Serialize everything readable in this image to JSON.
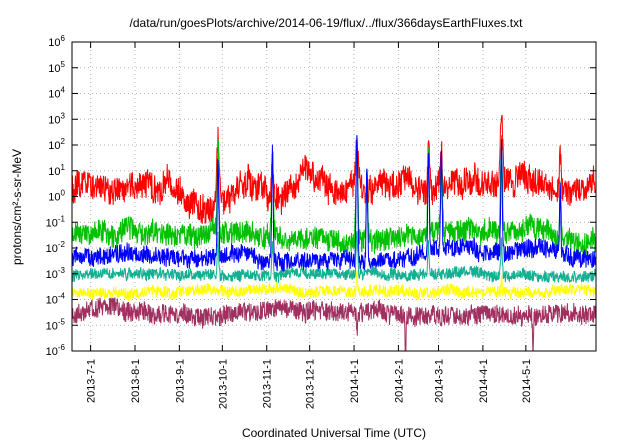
{
  "chart_data": {
    "type": "line",
    "title": "/data/run/goesPlots/archive/2014-06-19/flux/../flux/366daysEarthFluxes.txt",
    "xlabel": "Coordinated Universal Time (UTC)",
    "ylabel": "protons/cm²-s-sr-MeV",
    "grid": true,
    "legend": "none",
    "y_scale": "log10",
    "y_log_range": [
      -6,
      6
    ],
    "y_ticks_exponents": [
      6,
      5,
      4,
      3,
      2,
      1,
      0,
      -1,
      -2,
      -3,
      -4,
      -5,
      -6
    ],
    "x_range_days": 366,
    "x_ticks": [
      {
        "label": "2013-7-1",
        "day": 13
      },
      {
        "label": "2013-8-1",
        "day": 44
      },
      {
        "label": "2013-9-1",
        "day": 75
      },
      {
        "label": "2013-10-1",
        "day": 105
      },
      {
        "label": "2013-11-1",
        "day": 136
      },
      {
        "label": "2013-12-1",
        "day": 166
      },
      {
        "label": "2014-1-1",
        "day": 197
      },
      {
        "label": "2014-2-1",
        "day": 228
      },
      {
        "label": "2014-3-1",
        "day": 256
      },
      {
        "label": "2014-4-1",
        "day": 287
      },
      {
        "label": "2014-5-1",
        "day": 317
      }
    ],
    "series": [
      {
        "name": "red-band",
        "color": "#ff0000",
        "base_log": 0.3,
        "noise": 0.55,
        "walk": 0.18,
        "spikes": [
          {
            "day": 102,
            "amp": 2.8,
            "width": 1.2
          },
          {
            "day": 140,
            "amp": 1.8,
            "width": 1.0
          },
          {
            "day": 199,
            "amp": 1.8,
            "width": 1.2
          },
          {
            "day": 249,
            "amp": 1.6,
            "width": 1.0
          },
          {
            "day": 258,
            "amp": 1.4,
            "width": 0.8
          },
          {
            "day": 300,
            "amp": 2.8,
            "width": 1.2
          },
          {
            "day": 341,
            "amp": 1.5,
            "width": 0.8
          }
        ]
      },
      {
        "name": "green-band",
        "color": "#00c000",
        "base_log": -1.5,
        "noise": 0.45,
        "walk": 0.1,
        "spikes": [
          {
            "day": 102,
            "amp": 3.5,
            "width": 0.9
          },
          {
            "day": 140,
            "amp": 3.3,
            "width": 0.8
          },
          {
            "day": 199,
            "amp": 3.6,
            "width": 0.9
          },
          {
            "day": 206,
            "amp": 2.5,
            "width": 0.8
          },
          {
            "day": 249,
            "amp": 3.0,
            "width": 0.8
          },
          {
            "day": 258,
            "amp": 2.8,
            "width": 0.8
          },
          {
            "day": 300,
            "amp": 3.6,
            "width": 0.9
          },
          {
            "day": 341,
            "amp": 2.0,
            "width": 0.7
          }
        ]
      },
      {
        "name": "blue-band",
        "color": "#0000ff",
        "base_log": -2.4,
        "noise": 0.35,
        "walk": 0.08,
        "spikes": [
          {
            "day": 102,
            "amp": 4.0,
            "width": 0.7
          },
          {
            "day": 140,
            "amp": 4.3,
            "width": 0.7
          },
          {
            "day": 199,
            "amp": 4.8,
            "width": 0.8
          },
          {
            "day": 206,
            "amp": 3.5,
            "width": 0.7
          },
          {
            "day": 249,
            "amp": 4.2,
            "width": 0.7
          },
          {
            "day": 258,
            "amp": 3.8,
            "width": 0.7
          },
          {
            "day": 300,
            "amp": 4.3,
            "width": 0.7
          },
          {
            "day": 341,
            "amp": 2.5,
            "width": 0.6
          }
        ]
      },
      {
        "name": "teal-band",
        "color": "#10b090",
        "base_log": -3.05,
        "noise": 0.22,
        "walk": 0.05,
        "spikes": [
          {
            "day": 102,
            "amp": 1.5,
            "width": 0.7
          },
          {
            "day": 140,
            "amp": 1.2,
            "width": 0.7
          },
          {
            "day": 199,
            "amp": 1.8,
            "width": 0.7
          },
          {
            "day": 249,
            "amp": 1.2,
            "width": 0.6
          },
          {
            "day": 300,
            "amp": 1.5,
            "width": 0.7
          }
        ]
      },
      {
        "name": "yellow-band",
        "color": "#ffff00",
        "base_log": -3.65,
        "noise": 0.22,
        "walk": 0.04,
        "spikes": [
          {
            "day": 199,
            "amp": 0.8,
            "width": 0.6
          },
          {
            "day": 300,
            "amp": 0.6,
            "width": 0.5
          }
        ]
      },
      {
        "name": "purple-band",
        "color": "#a03060",
        "base_log": -4.55,
        "noise": 0.38,
        "walk": 0.06,
        "spikes": [
          {
            "day": 199,
            "amp": -0.8,
            "width": 0.4
          },
          {
            "day": 233,
            "amp": -1.5,
            "width": 0.5
          },
          {
            "day": 322,
            "amp": -1.6,
            "width": 0.5
          }
        ]
      }
    ]
  }
}
